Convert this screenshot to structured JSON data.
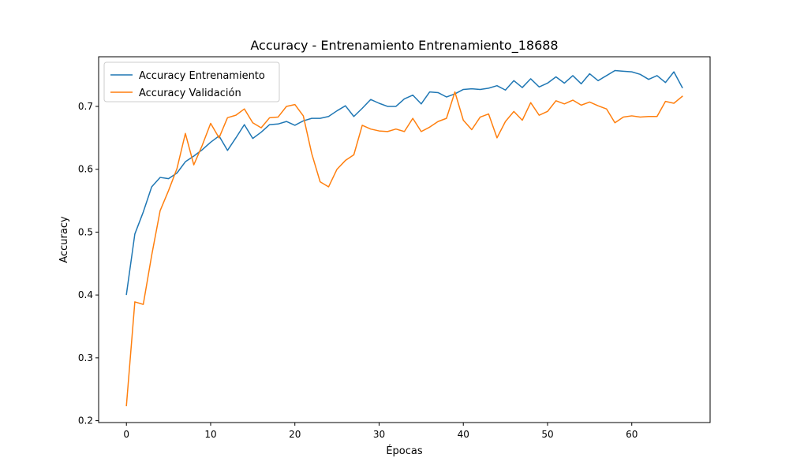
{
  "chart_data": {
    "type": "line",
    "title": "Accuracy - Entrenamiento Entrenamiento_18688",
    "xlabel": "Épocas",
    "ylabel": "Accuracy",
    "xlim": [
      -3.3,
      69.3
    ],
    "ylim": [
      0.197,
      0.779
    ],
    "xticks": [
      0,
      10,
      20,
      30,
      40,
      50,
      60
    ],
    "yticks": [
      0.2,
      0.3,
      0.4,
      0.5,
      0.6,
      0.7
    ],
    "grid": false,
    "legend_position": "top-left",
    "x": [
      0,
      1,
      2,
      3,
      4,
      5,
      6,
      7,
      8,
      9,
      10,
      11,
      12,
      13,
      14,
      15,
      16,
      17,
      18,
      19,
      20,
      21,
      22,
      23,
      24,
      25,
      26,
      27,
      28,
      29,
      30,
      31,
      32,
      33,
      34,
      35,
      36,
      37,
      38,
      39,
      40,
      41,
      42,
      43,
      44,
      45,
      46,
      47,
      48,
      49,
      50,
      51,
      52,
      53,
      54,
      55,
      56,
      57,
      58,
      59,
      60,
      61,
      62,
      63,
      64,
      65,
      66
    ],
    "series": [
      {
        "name": "Accuracy Entrenamiento",
        "color": "#1f77b4",
        "values": [
          0.401,
          0.497,
          0.532,
          0.572,
          0.587,
          0.585,
          0.594,
          0.612,
          0.621,
          0.631,
          0.643,
          0.653,
          0.63,
          0.65,
          0.671,
          0.649,
          0.659,
          0.671,
          0.672,
          0.676,
          0.67,
          0.677,
          0.681,
          0.681,
          0.684,
          0.693,
          0.701,
          0.684,
          0.697,
          0.711,
          0.705,
          0.7,
          0.7,
          0.712,
          0.718,
          0.704,
          0.723,
          0.722,
          0.715,
          0.72,
          0.727,
          0.728,
          0.727,
          0.729,
          0.733,
          0.726,
          0.741,
          0.73,
          0.744,
          0.731,
          0.737,
          0.747,
          0.737,
          0.749,
          0.736,
          0.752,
          0.741,
          0.749,
          0.757,
          0.756,
          0.755,
          0.751,
          0.743,
          0.749,
          0.738,
          0.755,
          0.73
        ]
      },
      {
        "name": "Accuracy Validación",
        "color": "#ff7f0e",
        "values": [
          0.224,
          0.389,
          0.385,
          0.463,
          0.534,
          0.566,
          0.601,
          0.657,
          0.607,
          0.638,
          0.673,
          0.65,
          0.682,
          0.686,
          0.696,
          0.674,
          0.666,
          0.682,
          0.683,
          0.7,
          0.703,
          0.685,
          0.625,
          0.58,
          0.572,
          0.6,
          0.614,
          0.623,
          0.67,
          0.664,
          0.661,
          0.66,
          0.664,
          0.66,
          0.681,
          0.66,
          0.667,
          0.676,
          0.681,
          0.723,
          0.678,
          0.663,
          0.683,
          0.688,
          0.65,
          0.676,
          0.692,
          0.678,
          0.706,
          0.686,
          0.692,
          0.709,
          0.704,
          0.71,
          0.702,
          0.707,
          0.701,
          0.696,
          0.674,
          0.683,
          0.685,
          0.683,
          0.684,
          0.684,
          0.708,
          0.705,
          0.716
        ]
      }
    ]
  }
}
